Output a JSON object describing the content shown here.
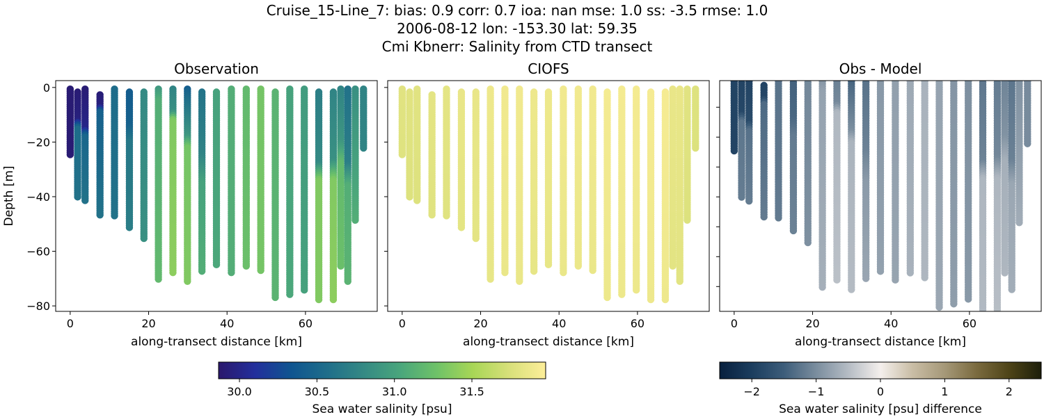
{
  "title": {
    "line1": "Cruise_15-Line_7: bias: 0.9  corr: 0.7  ioa: nan  mse: 1.0  ss: -3.5  rmse: 1.0",
    "line2": "2006-08-12 lon: -153.30 lat: 59.35",
    "line3": "Cmi Kbnerr: Salinity from CTD transect"
  },
  "chart_data": [
    {
      "type": "scatter",
      "title": "Observation",
      "xlabel": "along-transect distance [km]",
      "ylabel": "Depth [m]",
      "xlim": [
        -3.7,
        78.3
      ],
      "ylim": [
        -82,
        2.5
      ],
      "xticks": [
        0,
        20,
        40,
        60
      ],
      "yticks": [
        0,
        -20,
        -40,
        -60,
        -80
      ],
      "colormap": "haline",
      "clim": [
        29.865,
        31.976
      ],
      "stations": [
        {
          "x": 0.0,
          "top": -0.6,
          "bottom": -25.0,
          "salinity": [
            [
              0,
              29.9
            ],
            [
              -25,
              29.9
            ]
          ]
        },
        {
          "x": 1.9,
          "top": -1.7,
          "bottom": -40.7,
          "salinity": [
            [
              0,
              29.9
            ],
            [
              -12,
              29.95
            ],
            [
              -15,
              30.55
            ],
            [
              -41,
              30.6
            ]
          ]
        },
        {
          "x": 3.8,
          "top": -0.6,
          "bottom": -41.8,
          "salinity": [
            [
              0,
              29.9
            ],
            [
              -15,
              30.0
            ],
            [
              -18,
              30.5
            ],
            [
              -42,
              30.6
            ]
          ]
        },
        {
          "x": 7.6,
          "top": -2.7,
          "bottom": -46.7,
          "salinity": [
            [
              0,
              29.9
            ],
            [
              -7,
              29.95
            ],
            [
              -9,
              30.45
            ],
            [
              -47,
              30.6
            ]
          ]
        },
        {
          "x": 11.3,
          "top": -0.6,
          "bottom": -47.5,
          "salinity": [
            [
              0,
              30.55
            ],
            [
              -48,
              30.6
            ]
          ]
        },
        {
          "x": 15.1,
          "top": -1.7,
          "bottom": -52.0,
          "salinity": [
            [
              0,
              30.4
            ],
            [
              -14,
              30.45
            ],
            [
              -20,
              30.65
            ],
            [
              -52,
              30.7
            ]
          ]
        },
        {
          "x": 18.8,
          "top": -1.7,
          "bottom": -55.8,
          "salinity": [
            [
              0,
              30.8
            ],
            [
              -56,
              30.85
            ]
          ]
        },
        {
          "x": 22.5,
          "top": -0.6,
          "bottom": -70.5,
          "salinity": [
            [
              0,
              30.9
            ],
            [
              -5,
              31.1
            ],
            [
              -71,
              31.2
            ]
          ]
        },
        {
          "x": 26.2,
          "top": -0.6,
          "bottom": -68.5,
          "salinity": [
            [
              0,
              30.75
            ],
            [
              -9,
              30.85
            ],
            [
              -12,
              31.35
            ],
            [
              -69,
              31.4
            ]
          ]
        },
        {
          "x": 29.9,
          "top": -0.6,
          "bottom": -71.3,
          "salinity": [
            [
              0,
              30.4
            ],
            [
              -4,
              30.55
            ],
            [
              -18,
              30.9
            ],
            [
              -22,
              31.3
            ],
            [
              -72,
              31.35
            ]
          ]
        },
        {
          "x": 33.6,
          "top": -1.7,
          "bottom": -67.4,
          "salinity": [
            [
              0,
              30.6
            ],
            [
              -25,
              30.75
            ],
            [
              -35,
              31.0
            ],
            [
              -68,
              31.1
            ]
          ]
        },
        {
          "x": 37.3,
          "top": -1.7,
          "bottom": -65.5,
          "salinity": [
            [
              0,
              31.0
            ],
            [
              -66,
              31.05
            ]
          ]
        },
        {
          "x": 41.1,
          "top": -0.6,
          "bottom": -68.5,
          "salinity": [
            [
              0,
              31.1
            ],
            [
              -69,
              31.1
            ]
          ]
        },
        {
          "x": 44.9,
          "top": -0.6,
          "bottom": -65.5,
          "salinity": [
            [
              0,
              31.2
            ],
            [
              -66,
              31.25
            ]
          ]
        },
        {
          "x": 48.6,
          "top": -0.6,
          "bottom": -67.4,
          "salinity": [
            [
              0,
              31.3
            ],
            [
              -68,
              31.3
            ]
          ]
        },
        {
          "x": 52.3,
          "top": -1.7,
          "bottom": -77.6,
          "salinity": [
            [
              0,
              31.15
            ],
            [
              -78,
              31.15
            ]
          ]
        },
        {
          "x": 56.0,
          "top": -0.6,
          "bottom": -76.4,
          "salinity": [
            [
              0,
              31.0
            ],
            [
              -77,
              31.05
            ]
          ]
        },
        {
          "x": 59.7,
          "top": -0.6,
          "bottom": -74.4,
          "salinity": [
            [
              0,
              30.95
            ],
            [
              -75,
              31.0
            ]
          ]
        },
        {
          "x": 63.4,
          "top": -1.7,
          "bottom": -78.4,
          "salinity": [
            [
              0,
              30.7
            ],
            [
              -28,
              30.8
            ],
            [
              -34,
              31.35
            ],
            [
              -79,
              31.35
            ]
          ]
        },
        {
          "x": 67.1,
          "top": -1.7,
          "bottom": -78.4,
          "salinity": [
            [
              0,
              30.75
            ],
            [
              -27,
              30.85
            ],
            [
              -34,
              31.35
            ],
            [
              -79,
              31.4
            ]
          ]
        },
        {
          "x": 69.0,
          "top": -0.6,
          "bottom": -65.7,
          "salinity": [
            [
              0,
              30.75
            ],
            [
              -20,
              30.9
            ],
            [
              -28,
              31.2
            ],
            [
              -66,
              31.25
            ]
          ]
        },
        {
          "x": 70.8,
          "top": -0.6,
          "bottom": -71.5,
          "salinity": [
            [
              0,
              30.6
            ],
            [
              -28,
              30.7
            ],
            [
              -36,
              31.1
            ],
            [
              -72,
              31.15
            ]
          ]
        },
        {
          "x": 72.7,
          "top": -0.6,
          "bottom": -48.7,
          "salinity": [
            [
              0,
              30.85
            ],
            [
              -49,
              31.1
            ]
          ]
        },
        {
          "x": 74.8,
          "top": -0.6,
          "bottom": -22.2,
          "salinity": [
            [
              0,
              30.75
            ],
            [
              -23,
              30.75
            ]
          ]
        }
      ]
    },
    {
      "type": "scatter",
      "title": "CIOFS",
      "xlabel": "along-transect distance [km]",
      "xlim": [
        -3.7,
        78.3
      ],
      "ylim": [
        -82,
        2.5
      ],
      "xticks": [
        0,
        20,
        40,
        60
      ],
      "yticks": [
        0,
        -20,
        -40,
        -60,
        -80
      ],
      "colormap": "haline",
      "clim": [
        29.865,
        31.976
      ],
      "model_salinity": [
        31.8,
        31.8,
        31.8,
        31.82,
        31.82,
        31.85,
        31.85,
        31.88,
        31.9,
        31.9,
        31.88,
        31.88,
        31.9,
        31.9,
        31.9,
        31.92,
        31.92,
        31.92,
        31.93,
        31.93,
        31.85,
        31.85,
        31.8,
        31.78
      ]
    },
    {
      "type": "scatter",
      "title": "Obs - Model",
      "xlabel": "along-transect distance [km]",
      "xlim": [
        -3.7,
        78.3
      ],
      "ylim": [
        -78.3,
        -1.1
      ],
      "xticks": [
        0,
        20,
        40,
        60
      ],
      "yticks": [
        -10,
        -20,
        -30,
        -40,
        -50,
        -60,
        -70
      ],
      "colormap": "diff",
      "clim": [
        -2.5,
        2.5
      ]
    }
  ],
  "colorbars": [
    {
      "label": "Sea water salinity [psu]",
      "ticks": [
        "30.0",
        "30.5",
        "31.0",
        "31.5"
      ],
      "tick_values": [
        30.0,
        30.5,
        31.0,
        31.5
      ],
      "range": [
        29.865,
        31.976
      ]
    },
    {
      "label": "Sea water salinity [psu] difference",
      "ticks": [
        "−2",
        "−1",
        "0",
        "1",
        "2"
      ],
      "tick_values": [
        -2,
        -1,
        0,
        1,
        2
      ],
      "range": [
        -2.5,
        2.5
      ]
    }
  ],
  "colormaps": {
    "haline": [
      "#2a186c",
      "#232f9c",
      "#0f5590",
      "#1f6e8a",
      "#358a84",
      "#4aa67c",
      "#6ec268",
      "#a8d656",
      "#d8e07a",
      "#fdee99"
    ],
    "diff": [
      "#08203e",
      "#1b3d5e",
      "#3d5d7a",
      "#7a8d9e",
      "#b5bcc4",
      "#f4efec",
      "#c9bda5",
      "#a59878",
      "#7a6a3e",
      "#4e4418",
      "#1c1e0a"
    ]
  }
}
